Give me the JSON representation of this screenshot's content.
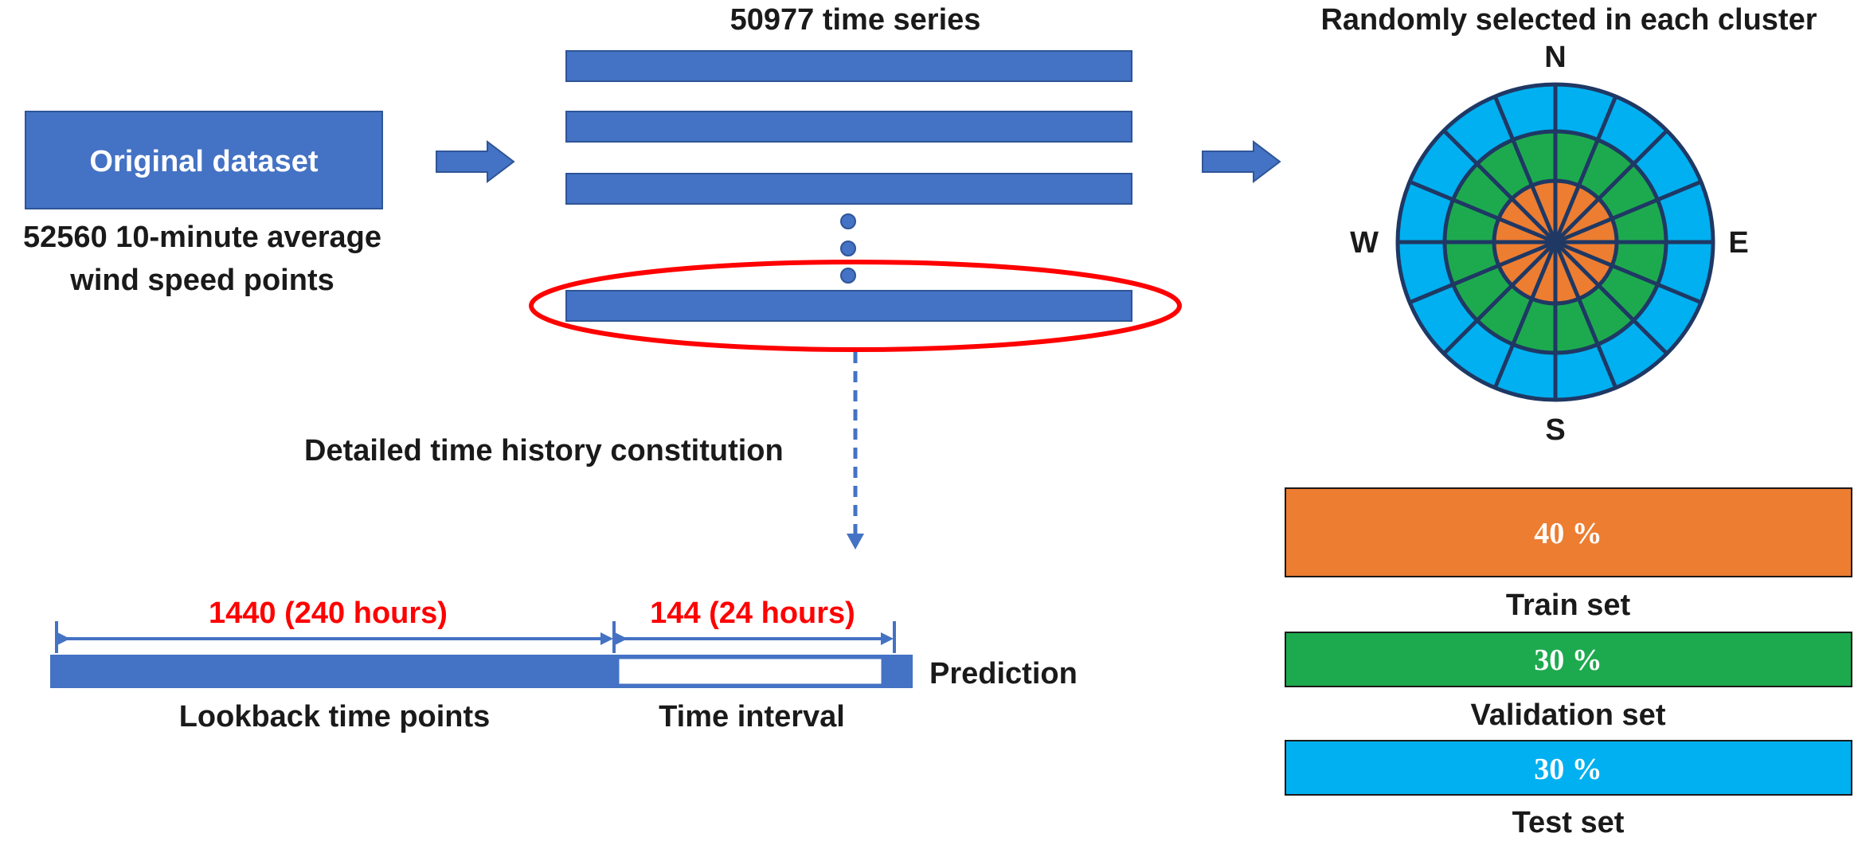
{
  "colors": {
    "primary_blue": "#4472C4",
    "red": "#FF0000",
    "orange": "#ED7D31",
    "green": "#1DAA4E",
    "light_blue": "#00B0F0",
    "dark_navy": "#1F3864"
  },
  "original": {
    "box_label": "Original dataset",
    "caption_line1": "52560 10-minute average",
    "caption_line2": "wind speed points"
  },
  "series": {
    "title": "50977 time series"
  },
  "detail": {
    "label": "Detailed time history constitution"
  },
  "timeline": {
    "lookback_span": "1440 (240 hours)",
    "interval_span": "144 (24 hours)",
    "lookback_label": "Lookback time points",
    "interval_label": "Time interval",
    "prediction_label": "Prediction"
  },
  "rose": {
    "title": "Randomly selected in each cluster",
    "north": "N",
    "south": "S",
    "east": "E",
    "west": "W",
    "sectors": 16
  },
  "split": {
    "train_pct": "40 %",
    "train_label": "Train set",
    "val_pct": "30 %",
    "val_label": "Validation set",
    "test_pct": "30 %",
    "test_label": "Test set"
  }
}
